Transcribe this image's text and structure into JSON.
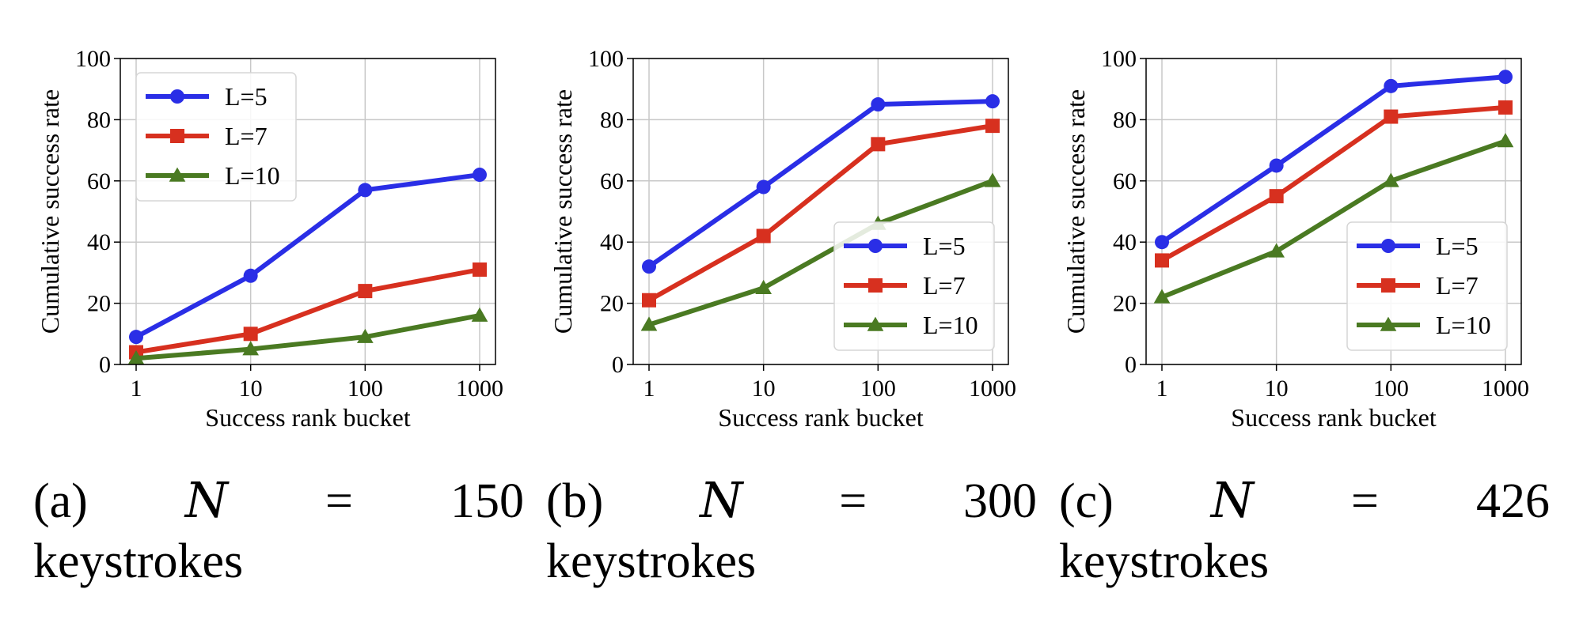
{
  "chart_data": [
    {
      "type": "line",
      "x": [
        "1",
        "10",
        "100",
        "1000"
      ],
      "xscale": "log",
      "xlabel": "Success rank bucket",
      "ylabel": "Cumulative success rate",
      "ylim": [
        0,
        100
      ],
      "yticks": [
        "0",
        "20",
        "40",
        "60",
        "80",
        "100"
      ],
      "grid": true,
      "legend_position": "upper-left",
      "series": [
        {
          "name": "L=5",
          "values": [
            9,
            29,
            57,
            62
          ],
          "color": "#2a2ee6",
          "marker": "circle"
        },
        {
          "name": "L=7",
          "values": [
            4,
            10,
            24,
            31
          ],
          "color": "#d7301f",
          "marker": "square"
        },
        {
          "name": "L=10",
          "values": [
            2,
            5,
            9,
            16
          ],
          "color": "#4a7a22",
          "marker": "triangle"
        }
      ],
      "caption": {
        "label": "(a)",
        "var": "N",
        "eq": "=",
        "value": "150",
        "unit": "keystrokes"
      }
    },
    {
      "type": "line",
      "x": [
        "1",
        "10",
        "100",
        "1000"
      ],
      "xscale": "log",
      "xlabel": "Success rank bucket",
      "ylabel": "Cumulative success rate",
      "ylim": [
        0,
        100
      ],
      "yticks": [
        "0",
        "20",
        "40",
        "60",
        "80",
        "100"
      ],
      "grid": true,
      "legend_position": "lower-right",
      "series": [
        {
          "name": "L=5",
          "values": [
            32,
            58,
            85,
            86
          ],
          "color": "#2a2ee6",
          "marker": "circle"
        },
        {
          "name": "L=7",
          "values": [
            21,
            42,
            72,
            78
          ],
          "color": "#d7301f",
          "marker": "square"
        },
        {
          "name": "L=10",
          "values": [
            13,
            25,
            46,
            60
          ],
          "color": "#4a7a22",
          "marker": "triangle"
        }
      ],
      "caption": {
        "label": "(b)",
        "var": "N",
        "eq": "=",
        "value": "300",
        "unit": "keystrokes"
      }
    },
    {
      "type": "line",
      "x": [
        "1",
        "10",
        "100",
        "1000"
      ],
      "xscale": "log",
      "xlabel": "Success rank bucket",
      "ylabel": "Cumulative success rate",
      "ylim": [
        0,
        100
      ],
      "yticks": [
        "0",
        "20",
        "40",
        "60",
        "80",
        "100"
      ],
      "grid": true,
      "legend_position": "lower-right",
      "series": [
        {
          "name": "L=5",
          "values": [
            40,
            65,
            91,
            94
          ],
          "color": "#2a2ee6",
          "marker": "circle"
        },
        {
          "name": "L=7",
          "values": [
            34,
            55,
            81,
            84
          ],
          "color": "#d7301f",
          "marker": "square"
        },
        {
          "name": "L=10",
          "values": [
            22,
            37,
            60,
            73
          ],
          "color": "#4a7a22",
          "marker": "triangle"
        }
      ],
      "caption": {
        "label": "(c)",
        "var": "N",
        "eq": "=",
        "value": "426",
        "unit": "keystrokes"
      }
    }
  ]
}
